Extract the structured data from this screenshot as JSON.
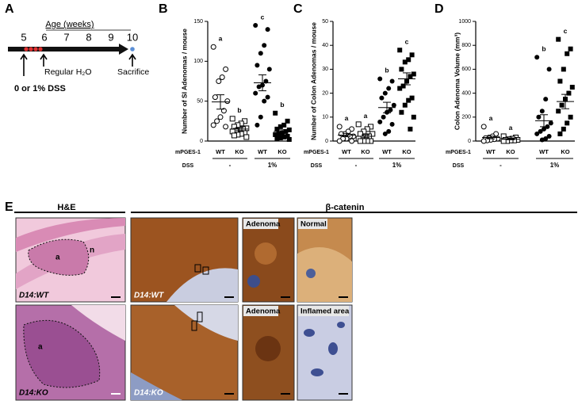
{
  "panel_labels": [
    "A",
    "B",
    "C",
    "D",
    "E"
  ],
  "timeline": {
    "axis_title": "Age (weeks)",
    "weeks": [
      5,
      6,
      7,
      8,
      9,
      10
    ],
    "treatment": "0 or 1% DSS",
    "water": "Regular H₂O",
    "end": "Sacrifice"
  },
  "chart_data": [
    {
      "type": "dot",
      "ylabel": "Number of SI Adenomas / mouse",
      "ylim": [
        0,
        150
      ],
      "yticks": [
        0,
        50,
        100,
        150
      ],
      "row_labels": [
        "mPGES-1",
        "DSS"
      ],
      "categories": [
        "WT",
        "KO",
        "WT",
        "KO"
      ],
      "dss_groups": [
        "-",
        "1%"
      ],
      "groups": [
        {
          "marker": "open-circle",
          "letter": "a",
          "mean": 49,
          "sem": 9,
          "values": [
            118,
            90,
            80,
            75,
            55,
            50,
            38,
            30,
            25,
            20,
            18
          ]
        },
        {
          "marker": "open-square",
          "letter": "b",
          "mean": 15,
          "sem": 2,
          "values": [
            28,
            25,
            22,
            20,
            18,
            16,
            15,
            14,
            13,
            12,
            10,
            9,
            8,
            7,
            5
          ]
        },
        {
          "marker": "filled-circle",
          "letter": "c",
          "mean": 73,
          "sem": 10,
          "values": [
            145,
            140,
            120,
            110,
            95,
            90,
            75,
            70,
            68,
            60,
            55,
            50,
            30,
            20
          ]
        },
        {
          "marker": "filled-square",
          "letter": "b",
          "mean": 12,
          "sem": 2,
          "values": [
            35,
            25,
            20,
            18,
            15,
            14,
            12,
            10,
            9,
            8,
            6,
            5,
            4,
            3,
            2
          ]
        }
      ]
    },
    {
      "type": "dot",
      "ylabel": "Number of Colon Adenomas / mouse",
      "ylim": [
        0,
        50
      ],
      "yticks": [
        0,
        10,
        20,
        30,
        40,
        50
      ],
      "row_labels": [
        "mPGES-1",
        "DSS"
      ],
      "categories": [
        "WT",
        "KO",
        "WT",
        "KO"
      ],
      "dss_groups": [
        "-",
        "1%"
      ],
      "groups": [
        {
          "marker": "open-circle",
          "letter": "a",
          "mean": 2.5,
          "sem": 0.7,
          "values": [
            6,
            5,
            4,
            3,
            3,
            2,
            2,
            1,
            1,
            0,
            0
          ]
        },
        {
          "marker": "open-square",
          "letter": "a",
          "mean": 2,
          "sem": 0.6,
          "values": [
            7,
            6,
            5,
            4,
            3,
            3,
            2,
            2,
            1,
            1,
            0,
            0,
            0,
            0
          ]
        },
        {
          "marker": "filled-circle",
          "letter": "b",
          "mean": 14,
          "sem": 2.2,
          "values": [
            26,
            25,
            22,
            20,
            18,
            15,
            13,
            12,
            10,
            8,
            7,
            4,
            3
          ]
        },
        {
          "marker": "filled-square",
          "letter": "c",
          "mean": 26,
          "sem": 2.5,
          "values": [
            38,
            36,
            34,
            33,
            30,
            28,
            27,
            25,
            23,
            22,
            18,
            17,
            15,
            12,
            10,
            5
          ]
        }
      ]
    },
    {
      "type": "dot",
      "ylabel": "Colon Adenoma Volume (mm³)",
      "ylim": [
        0,
        1000
      ],
      "yticks": [
        0,
        200,
        400,
        600,
        800,
        1000
      ],
      "row_labels": [
        "mPGES-1",
        "DSS"
      ],
      "categories": [
        "WT",
        "KO",
        "WT",
        "KO"
      ],
      "dss_groups": [
        "-",
        "1%"
      ],
      "groups": [
        {
          "marker": "open-circle",
          "letter": "a",
          "mean": 30,
          "sem": 11,
          "values": [
            120,
            60,
            40,
            30,
            25,
            20,
            15,
            10,
            5,
            0
          ]
        },
        {
          "marker": "open-square",
          "letter": "a",
          "mean": 15,
          "sem": 4,
          "values": [
            40,
            30,
            20,
            15,
            10,
            10,
            5,
            5,
            0,
            0
          ]
        },
        {
          "marker": "filled-circle",
          "letter": "b",
          "mean": 170,
          "sem": 50,
          "values": [
            700,
            600,
            350,
            250,
            200,
            150,
            120,
            100,
            80,
            60,
            40,
            20,
            10
          ]
        },
        {
          "marker": "filled-square",
          "letter": "c",
          "mean": 330,
          "sem": 60,
          "values": [
            850,
            770,
            730,
            600,
            500,
            450,
            400,
            350,
            300,
            250,
            200,
            150,
            100,
            60
          ]
        }
      ]
    }
  ],
  "figure_e": {
    "he_title": "H&E",
    "bc_title": "β-catenin",
    "region_labels": [
      "a",
      "n",
      "a"
    ],
    "sample_labels": [
      "D14:WT",
      "D14:KO"
    ],
    "inset_labels": [
      "Adenoma",
      "Normal",
      "Adenoma",
      "Inflamed area"
    ]
  }
}
